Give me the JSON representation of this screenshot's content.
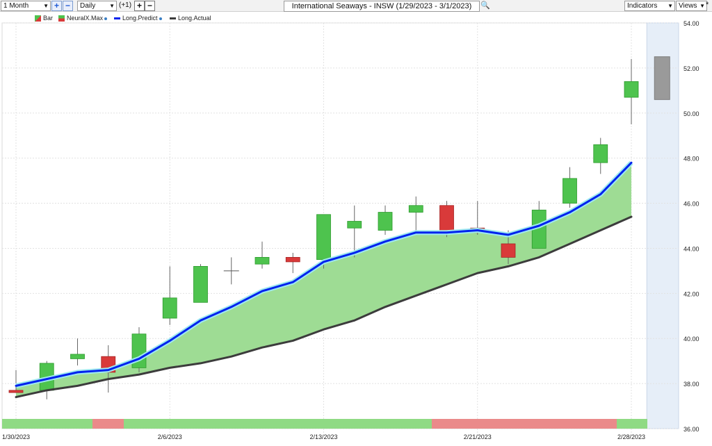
{
  "toolbar": {
    "period": "1 Month",
    "interval": "Daily",
    "offset": "(+1)",
    "title": "International Seaways - INSW (1/29/2023 - 3/1/2023)",
    "indicators": "Indicators",
    "views": "Views"
  },
  "legend": {
    "bar": "Bar",
    "neuralx": "NeuralX.Max",
    "predict": "Long.Predict",
    "actual": "Long.Actual"
  },
  "colors": {
    "up": "#4ec34e",
    "down": "#d93a3a",
    "predict": "#0022ee",
    "actual": "#3c3c3c",
    "fill": "#9edc94",
    "forecast_band": "#e6eef8",
    "neural_green": "#8fda84",
    "neural_red": "#ea8a8a"
  },
  "chart_data": {
    "type": "candlestick",
    "y_ticks": [
      "54.00",
      "52.00",
      "50.00",
      "48.00",
      "46.00",
      "44.00",
      "42.00",
      "40.00",
      "38.00",
      "36.00"
    ],
    "x_ticks": [
      "1/30/2023",
      "2/6/2023",
      "2/13/2023",
      "2/21/2023",
      "2/28/2023"
    ],
    "ylim": [
      36,
      54
    ],
    "candles": [
      {
        "date": "1/30",
        "open": 37.7,
        "high": 38.6,
        "low": 37.6,
        "close": 37.6
      },
      {
        "date": "1/31",
        "open": 37.7,
        "high": 39.0,
        "low": 37.3,
        "close": 38.9
      },
      {
        "date": "2/1",
        "open": 39.1,
        "high": 40.0,
        "low": 38.8,
        "close": 39.3
      },
      {
        "date": "2/2",
        "open": 39.2,
        "high": 39.7,
        "low": 37.6,
        "close": 38.5
      },
      {
        "date": "2/3",
        "open": 38.7,
        "high": 40.5,
        "low": 38.5,
        "close": 40.2
      },
      {
        "date": "2/6",
        "open": 40.9,
        "high": 43.2,
        "low": 40.6,
        "close": 41.8
      },
      {
        "date": "2/7",
        "open": 41.6,
        "high": 43.3,
        "low": 41.6,
        "close": 43.2
      },
      {
        "date": "2/8",
        "open": 43.0,
        "high": 43.6,
        "low": 42.4,
        "close": 43.0
      },
      {
        "date": "2/9",
        "open": 43.3,
        "high": 44.3,
        "low": 43.1,
        "close": 43.6
      },
      {
        "date": "2/10",
        "open": 43.6,
        "high": 43.8,
        "low": 42.9,
        "close": 43.4
      },
      {
        "date": "2/13",
        "open": 43.5,
        "high": 45.5,
        "low": 43.1,
        "close": 45.5
      },
      {
        "date": "2/14",
        "open": 44.9,
        "high": 45.9,
        "low": 43.6,
        "close": 45.2
      },
      {
        "date": "2/15",
        "open": 44.8,
        "high": 45.9,
        "low": 44.6,
        "close": 45.6
      },
      {
        "date": "2/16",
        "open": 45.6,
        "high": 46.3,
        "low": 44.7,
        "close": 45.9
      },
      {
        "date": "2/17",
        "open": 45.9,
        "high": 46.1,
        "low": 44.5,
        "close": 44.7
      },
      {
        "date": "2/21",
        "open": 44.9,
        "high": 46.1,
        "low": 44.6,
        "close": 44.7
      },
      {
        "date": "2/22",
        "open": 44.2,
        "high": 44.8,
        "low": 43.3,
        "close": 43.6
      },
      {
        "date": "2/23",
        "open": 44.0,
        "high": 46.1,
        "low": 44.0,
        "close": 45.7
      },
      {
        "date": "2/24",
        "open": 46.0,
        "high": 47.6,
        "low": 45.8,
        "close": 47.1
      },
      {
        "date": "2/27",
        "open": 47.8,
        "high": 48.9,
        "low": 47.3,
        "close": 48.6
      },
      {
        "date": "2/28",
        "open": 50.7,
        "high": 52.4,
        "low": 49.5,
        "close": 51.4
      }
    ],
    "forecast_bar": {
      "date": "3/1",
      "high": 52.5,
      "low": 50.6
    },
    "series": [
      {
        "name": "Long.Predict",
        "values": [
          37.9,
          38.2,
          38.5,
          38.6,
          39.1,
          39.9,
          40.8,
          41.4,
          42.1,
          42.5,
          43.4,
          43.8,
          44.3,
          44.7,
          44.7,
          44.8,
          44.6,
          45.0,
          45.6,
          46.4,
          47.8
        ]
      },
      {
        "name": "Long.Actual",
        "values": [
          37.4,
          37.7,
          37.9,
          38.2,
          38.4,
          38.7,
          38.9,
          39.2,
          39.6,
          39.9,
          40.4,
          40.8,
          41.4,
          41.9,
          42.4,
          42.9,
          43.2,
          43.6,
          44.2,
          44.8,
          45.4
        ]
      }
    ],
    "neuralx_segments": [
      "green",
      "red",
      "green",
      "green",
      "green",
      "red",
      "red",
      "green"
    ]
  }
}
